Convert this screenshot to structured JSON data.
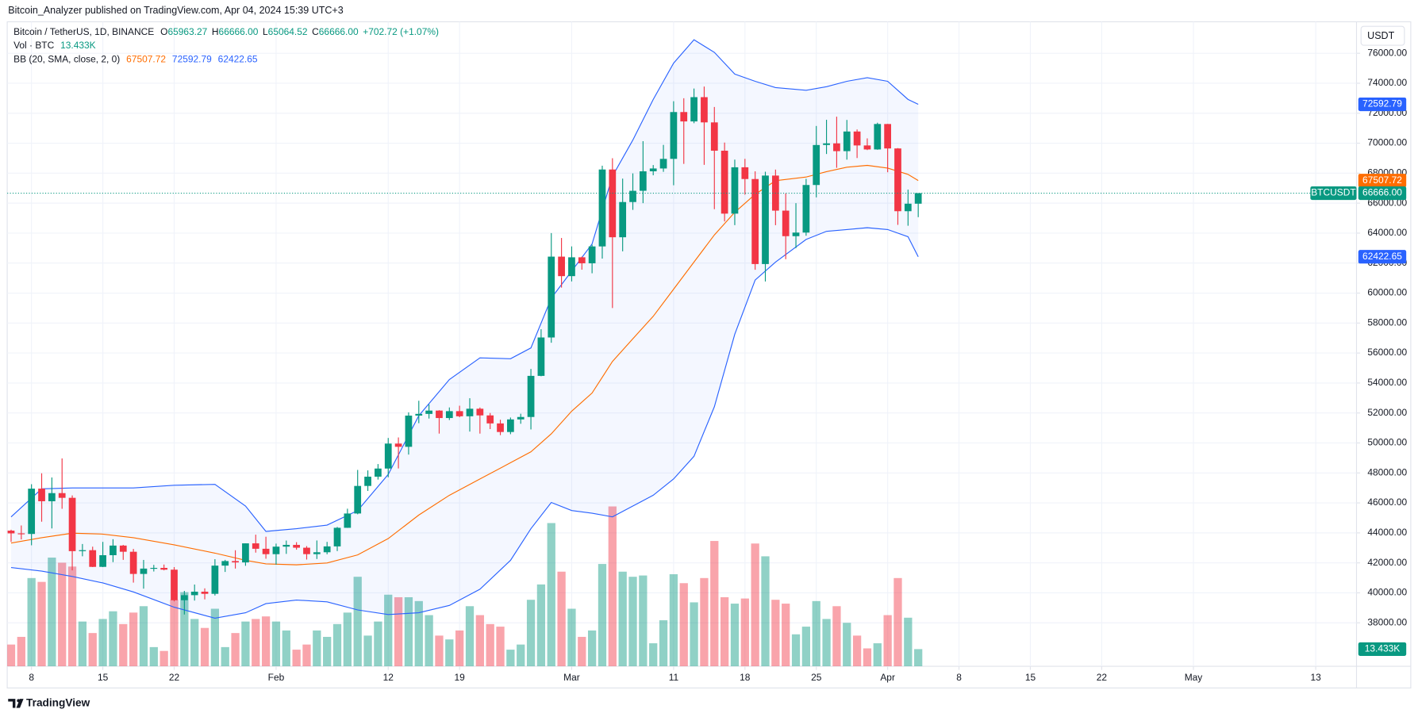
{
  "header": {
    "published": "Bitcoin_Analyzer published on TradingView.com, Apr 04, 2024 15:39 UTC+3"
  },
  "footer": {
    "brand": "TradingView"
  },
  "chart_data": {
    "type": "candlestick",
    "legend": {
      "symbol": "Bitcoin / TetherUS, 1D, BINANCE",
      "ohlc": [
        {
          "key": "O",
          "label": "65963.27"
        },
        {
          "key": "H",
          "label": "66666.00"
        },
        {
          "key": "L",
          "label": "65064.52"
        },
        {
          "key": "C",
          "label": "66666.00"
        }
      ],
      "change": "+702.72 (+1.07%)",
      "volume_title": "Vol · BTC",
      "volume_value": "13.433K",
      "bb_title": "BB (20, SMA, close, 2, 0)",
      "bb_values": [
        "67507.72",
        "72592.79",
        "62422.65"
      ]
    },
    "currency": "USDT",
    "up_color": "#089981",
    "down_color": "#f23645",
    "xlim": [
      "2024-01-05",
      "2024-05-17"
    ],
    "xticks": [
      {
        "value": "2024-01-08",
        "label": "8"
      },
      {
        "value": "2024-01-15",
        "label": "15"
      },
      {
        "value": "2024-01-22",
        "label": "22"
      },
      {
        "value": "2024-02-01",
        "label": "Feb"
      },
      {
        "value": "2024-02-12",
        "label": "12"
      },
      {
        "value": "2024-02-19",
        "label": "19"
      },
      {
        "value": "2024-03-01",
        "label": "Mar"
      },
      {
        "value": "2024-03-11",
        "label": "11"
      },
      {
        "value": "2024-03-18",
        "label": "18"
      },
      {
        "value": "2024-03-25",
        "label": "25"
      },
      {
        "value": "2024-04-01",
        "label": "Apr"
      },
      {
        "value": "2024-04-08",
        "label": "8"
      },
      {
        "value": "2024-04-15",
        "label": "15"
      },
      {
        "value": "2024-04-22",
        "label": "22"
      },
      {
        "value": "2024-05-01",
        "label": "May"
      },
      {
        "value": "2024-05-13",
        "label": "13"
      }
    ],
    "ylim": [
      35100,
      78100
    ],
    "yticks": [
      {
        "value": 38000,
        "label": "38000.00"
      },
      {
        "value": 40000,
        "label": "40000.00"
      },
      {
        "value": 42000,
        "label": "42000.00"
      },
      {
        "value": 44000,
        "label": "44000.00"
      },
      {
        "value": 46000,
        "label": "46000.00"
      },
      {
        "value": 48000,
        "label": "48000.00"
      },
      {
        "value": 50000,
        "label": "50000.00"
      },
      {
        "value": 52000,
        "label": "52000.00"
      },
      {
        "value": 54000,
        "label": "54000.00"
      },
      {
        "value": 56000,
        "label": "56000.00"
      },
      {
        "value": 58000,
        "label": "58000.00"
      },
      {
        "value": 60000,
        "label": "60000.00"
      },
      {
        "value": 62000,
        "label": "62000.00"
      },
      {
        "value": 64000,
        "label": "64000.00"
      },
      {
        "value": 66000,
        "label": "66000.00"
      },
      {
        "value": 68000,
        "label": "68000.00"
      },
      {
        "value": 70000,
        "label": "70000.00"
      },
      {
        "value": 72000,
        "label": "72000.00"
      },
      {
        "value": 74000,
        "label": "74000.00"
      },
      {
        "value": 76000,
        "label": "76000.00"
      }
    ],
    "y2lim": [
      0,
      504000
    ],
    "grid": true,
    "x": [
      "2024-01-06",
      "2024-01-07",
      "2024-01-08",
      "2024-01-09",
      "2024-01-10",
      "2024-01-11",
      "2024-01-12",
      "2024-01-13",
      "2024-01-14",
      "2024-01-15",
      "2024-01-16",
      "2024-01-17",
      "2024-01-18",
      "2024-01-19",
      "2024-01-20",
      "2024-01-21",
      "2024-01-22",
      "2024-01-23",
      "2024-01-24",
      "2024-01-25",
      "2024-01-26",
      "2024-01-27",
      "2024-01-28",
      "2024-01-29",
      "2024-01-30",
      "2024-01-31",
      "2024-02-01",
      "2024-02-02",
      "2024-02-03",
      "2024-02-04",
      "2024-02-05",
      "2024-02-06",
      "2024-02-07",
      "2024-02-08",
      "2024-02-09",
      "2024-02-10",
      "2024-02-11",
      "2024-02-12",
      "2024-02-13",
      "2024-02-14",
      "2024-02-15",
      "2024-02-16",
      "2024-02-17",
      "2024-02-18",
      "2024-02-19",
      "2024-02-20",
      "2024-02-21",
      "2024-02-22",
      "2024-02-23",
      "2024-02-24",
      "2024-02-25",
      "2024-02-26",
      "2024-02-27",
      "2024-02-28",
      "2024-02-29",
      "2024-03-01",
      "2024-03-02",
      "2024-03-03",
      "2024-03-04",
      "2024-03-05",
      "2024-03-06",
      "2024-03-07",
      "2024-03-08",
      "2024-03-09",
      "2024-03-10",
      "2024-03-11",
      "2024-03-12",
      "2024-03-13",
      "2024-03-14",
      "2024-03-15",
      "2024-03-16",
      "2024-03-17",
      "2024-03-18",
      "2024-03-19",
      "2024-03-20",
      "2024-03-21",
      "2024-03-22",
      "2024-03-23",
      "2024-03-24",
      "2024-03-25",
      "2024-03-26",
      "2024-03-27",
      "2024-03-28",
      "2024-03-29",
      "2024-03-30",
      "2024-03-31",
      "2024-04-01",
      "2024-04-02",
      "2024-04-03",
      "2024-04-04"
    ],
    "open": [
      44151,
      43968,
      43929,
      46951,
      46110,
      46654,
      46340,
      42782,
      42847,
      41733,
      42512,
      43154,
      42742,
      41262,
      41618,
      41665,
      41546,
      39507,
      39845,
      40077,
      39934,
      41816,
      42120,
      42031,
      43302,
      42941,
      42580,
      43082,
      43200,
      43011,
      42582,
      42708,
      43099,
      44339,
      45294,
      47132,
      47751,
      48293,
      49958,
      49743,
      51826,
      51939,
      52160,
      51663,
      52122,
      51780,
      52284,
      51839,
      51304,
      50731,
      51571,
      51733,
      54476,
      57037,
      62432,
      61130,
      62387,
      61987,
      63113,
      68245,
      63724,
      66074,
      66824,
      68124,
      68313,
      68955,
      72078,
      71452,
      73072,
      71388,
      69499,
      65300,
      68393,
      67609,
      61937,
      67840,
      65501,
      63796,
      64037,
      67211,
      69880,
      69988,
      69469,
      70780,
      69850,
      69582,
      71280,
      69649,
      65463,
      65963.27
    ],
    "high": [
      44214,
      44495,
      47248,
      47972,
      47695,
      48969,
      46498,
      43257,
      43079,
      43400,
      43578,
      43198,
      42930,
      42196,
      41865,
      41889,
      41717,
      40129,
      40555,
      40300,
      42246,
      42200,
      42842,
      43305,
      43882,
      43745,
      43285,
      43489,
      43380,
      43119,
      43494,
      43400,
      44396,
      45614,
      48200,
      48170,
      48592,
      50334,
      50368,
      52043,
      52816,
      52576,
      52186,
      52370,
      52485,
      52985,
      52366,
      52000,
      51548,
      51698,
      51950,
      54938,
      57588,
      64000,
      63676,
      63114,
      62433,
      63231,
      68499,
      69000,
      67637,
      67985,
      70136,
      68541,
      69888,
      72800,
      73000,
      73650,
      73777,
      72419,
      70043,
      68904,
      68956,
      68124,
      68100,
      68240,
      66650,
      65999,
      67622,
      71150,
      71561,
      71769,
      71552,
      70916,
      70321,
      71366,
      71288,
      69674,
      66903,
      66666
    ],
    "low": [
      43397,
      43566,
      43175,
      44748,
      44300,
      45606,
      41500,
      42436,
      41720,
      41718,
      42050,
      42200,
      40683,
      40280,
      41424,
      41500,
      39432,
      38555,
      39484,
      39565,
      39822,
      41394,
      41620,
      41804,
      42683,
      42276,
      41884,
      42600,
      42880,
      42222,
      42258,
      42574,
      42788,
      44332,
      45242,
      46800,
      47558,
      47710,
      48300,
      49225,
      51320,
      51630,
      50625,
      51530,
      51715,
      50760,
      50625,
      50926,
      50521,
      50585,
      51280,
      50901,
      54450,
      56690,
      60364,
      60777,
      61561,
      61321,
      62300,
      59005,
      62786,
      65551,
      66000,
      67861,
      68088,
      67194,
      68620,
      71333,
      68555,
      65600,
      64780,
      64533,
      66566,
      61555,
      60775,
      64529,
      62260,
      63000,
      63825,
      66385,
      69280,
      68359,
      68903,
      69009,
      69540,
      69562,
      68062,
      64550,
      64493,
      65064.52
    ],
    "close": [
      43968,
      43929,
      46951,
      46110,
      46653,
      46339,
      42782,
      42847,
      41732,
      42511,
      43154,
      42742,
      41262,
      41618,
      41665,
      41545,
      39507,
      39845,
      40077,
      39934,
      41816,
      42120,
      42031,
      43302,
      42941,
      42580,
      43082,
      43200,
      43011,
      42582,
      42708,
      43099,
      44340,
      45294,
      47132,
      47751,
      48293,
      49958,
      49743,
      51826,
      51939,
      52160,
      51663,
      52122,
      51780,
      52284,
      51839,
      51304,
      50731,
      51571,
      51733,
      54476,
      57037,
      62432,
      61130,
      62387,
      61987,
      63113,
      68245,
      63724,
      66074,
      66823,
      68124,
      68313,
      68955,
      72078,
      71452,
      73072,
      71388,
      69499,
      65300,
      68393,
      67609,
      61937,
      67840,
      65501,
      63796,
      64037,
      67211,
      69880,
      69988,
      69469,
      70780,
      69850,
      69582,
      71281,
      69649,
      65463,
      65963.27,
      66666
    ],
    "volume": {
      "axis": "y2",
      "opacity": 0.45,
      "values": [
        17000,
        23000,
        69000,
        66000,
        85000,
        81000,
        78000,
        35000,
        26000,
        37000,
        43000,
        33000,
        42000,
        47000,
        15000,
        12000,
        52000,
        58000,
        37000,
        30000,
        45000,
        15000,
        26000,
        35000,
        37000,
        39000,
        35000,
        28000,
        13000,
        17000,
        28000,
        23000,
        33000,
        42000,
        70000,
        24000,
        35000,
        56000,
        54000,
        54000,
        51000,
        40000,
        24000,
        21000,
        28000,
        47000,
        40000,
        33000,
        31000,
        13000,
        17000,
        52000,
        64000,
        112000,
        74000,
        45000,
        23000,
        28000,
        80000,
        125000,
        74000,
        70000,
        71000,
        18000,
        36000,
        72000,
        65000,
        50000,
        69000,
        98000,
        54000,
        49000,
        53000,
        96000,
        86000,
        52000,
        49000,
        25000,
        31000,
        51000,
        37000,
        47000,
        34000,
        24000,
        14000,
        18000,
        40000,
        69000,
        38000,
        13433
      ]
    },
    "bollinger": {
      "x": [
        "2024-01-06",
        "2024-01-09",
        "2024-01-12",
        "2024-01-15",
        "2024-01-18",
        "2024-01-22",
        "2024-01-26",
        "2024-01-29",
        "2024-01-31",
        "2024-02-03",
        "2024-02-06",
        "2024-02-09",
        "2024-02-12",
        "2024-02-15",
        "2024-02-18",
        "2024-02-21",
        "2024-02-24",
        "2024-02-26",
        "2024-02-28",
        "2024-03-01",
        "2024-03-03",
        "2024-03-05",
        "2024-03-07",
        "2024-03-09",
        "2024-03-11",
        "2024-03-13",
        "2024-03-15",
        "2024-03-17",
        "2024-03-19",
        "2024-03-21",
        "2024-03-24",
        "2024-03-26",
        "2024-03-28",
        "2024-03-30",
        "2024-04-01",
        "2024-04-03",
        "2024-04-04"
      ],
      "fill": "#2962ff",
      "fill_opacity": 0.05,
      "series": [
        {
          "color": "#ff6d00",
          "values": [
            43320,
            43680,
            43980,
            43920,
            43680,
            43200,
            42650,
            42170,
            41930,
            41870,
            41990,
            42530,
            43620,
            45190,
            46510,
            47600,
            48680,
            49410,
            50610,
            52120,
            53330,
            55440,
            56950,
            58450,
            60260,
            62070,
            63880,
            65390,
            66590,
            67500,
            67740,
            68100,
            68400,
            68520,
            68340,
            67920,
            67507.72
          ]
        },
        {
          "color": "#2962ff",
          "values": [
            45070,
            46940,
            47000,
            47000,
            47000,
            47180,
            47240,
            45790,
            44100,
            44280,
            44520,
            45490,
            47900,
            51820,
            54230,
            55680,
            55620,
            56340,
            59660,
            61470,
            63280,
            67800,
            70210,
            72920,
            75340,
            76900,
            76060,
            74610,
            74130,
            73710,
            73530,
            73770,
            74130,
            74370,
            74130,
            72920,
            72592.79
          ]
        },
        {
          "color": "#2962ff",
          "values": [
            41690,
            41450,
            41090,
            40660,
            40060,
            39040,
            38310,
            38670,
            39280,
            39520,
            39400,
            38860,
            38550,
            38670,
            39160,
            40240,
            42170,
            44280,
            46030,
            45490,
            45310,
            45070,
            45790,
            46510,
            47600,
            49110,
            52420,
            57250,
            60870,
            62070,
            63580,
            64120,
            64240,
            64360,
            64240,
            63760,
            62422.65
          ]
        }
      ]
    },
    "price_labels": [
      {
        "value": 72592.79,
        "label": "72592.79",
        "color": "#2962ff"
      },
      {
        "value": 67507.72,
        "label": "67507.72",
        "color": "#ff6d00"
      },
      {
        "value": 66666,
        "label": "66666.00",
        "color": "#089981",
        "symbol": "BTCUSDT",
        "line": "dotted"
      },
      {
        "value": 62422.65,
        "label": "62422.65",
        "color": "#2962ff"
      }
    ],
    "volume_label": {
      "value": 13433,
      "label": "13.433K",
      "color": "#089981"
    }
  }
}
